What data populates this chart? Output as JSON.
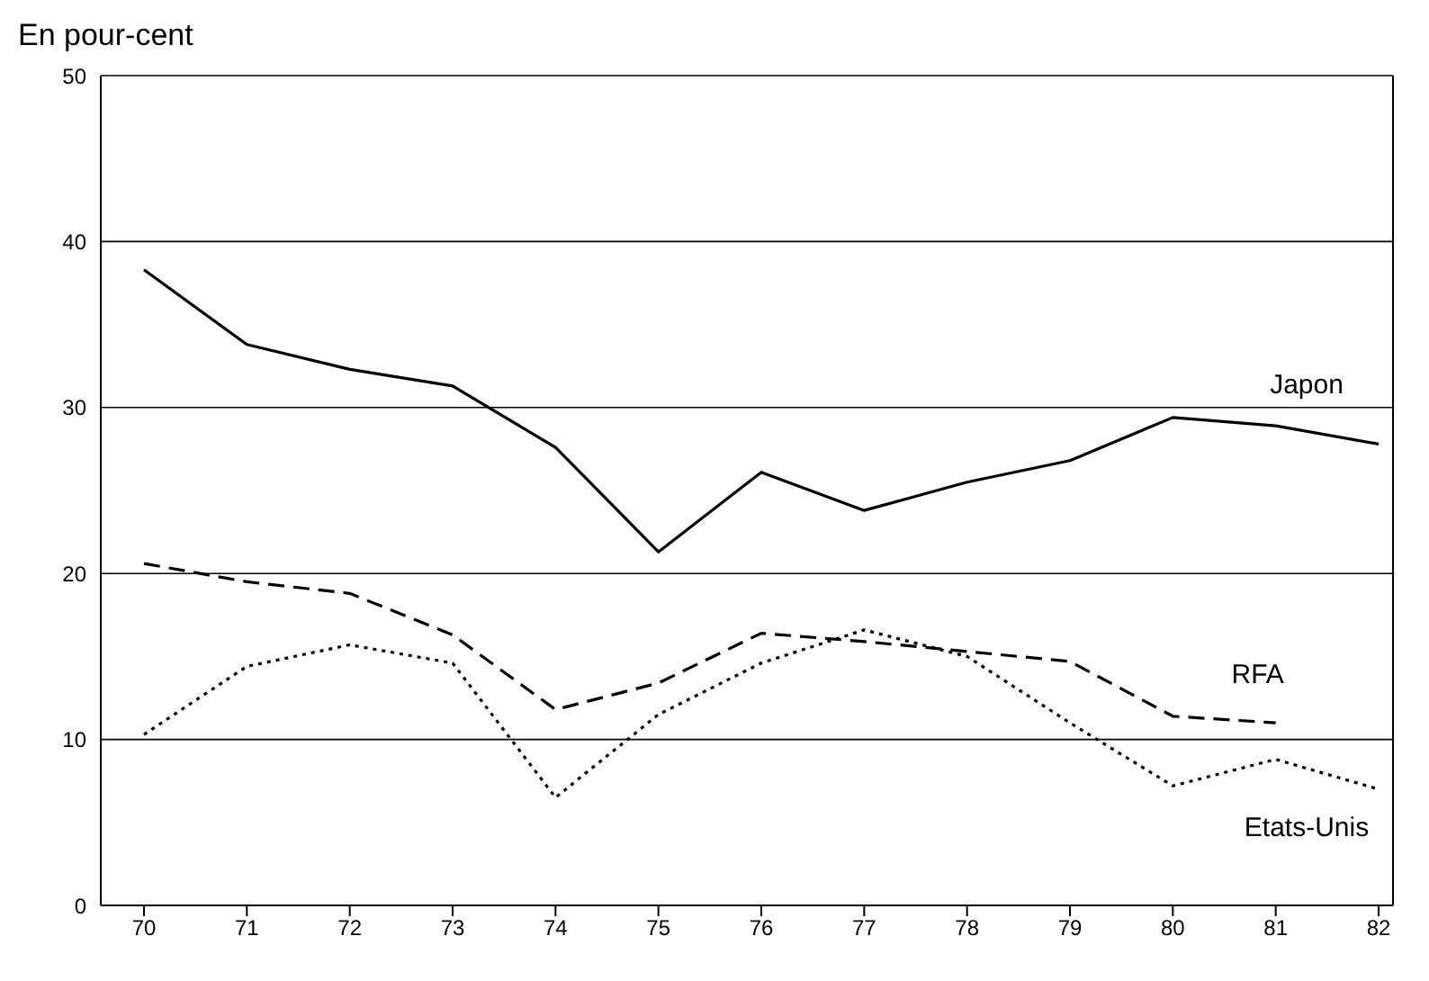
{
  "chart_data": {
    "type": "line",
    "ylabel": "En pour-cent",
    "categories": [
      "70",
      "71",
      "72",
      "73",
      "74",
      "75",
      "76",
      "77",
      "78",
      "79",
      "80",
      "81",
      "82"
    ],
    "series": [
      {
        "name": "Japon",
        "color": "#000000",
        "line_style": "solid",
        "values": [
          38.3,
          33.8,
          32.3,
          31.3,
          27.6,
          21.3,
          26.1,
          23.8,
          25.5,
          26.8,
          29.4,
          28.9,
          27.8
        ]
      },
      {
        "name": "RFA",
        "color": "#000000",
        "line_style": "dashed",
        "values": [
          20.6,
          19.5,
          18.8,
          16.3,
          11.8,
          13.4,
          16.4,
          15.9,
          15.3,
          14.7,
          11.4,
          11.0,
          null
        ]
      },
      {
        "name": "Etats-Unis",
        "color": "#000000",
        "line_style": "dotted",
        "values": [
          10.3,
          14.4,
          15.7,
          14.6,
          6.5,
          11.5,
          14.6,
          16.6,
          15.0,
          11.0,
          7.2,
          8.8,
          7.0
        ]
      }
    ],
    "ylim": [
      0,
      50
    ],
    "yticks": [
      0,
      10,
      20,
      30,
      40,
      50
    ],
    "grid": "y",
    "marker": "none",
    "legend": false
  }
}
